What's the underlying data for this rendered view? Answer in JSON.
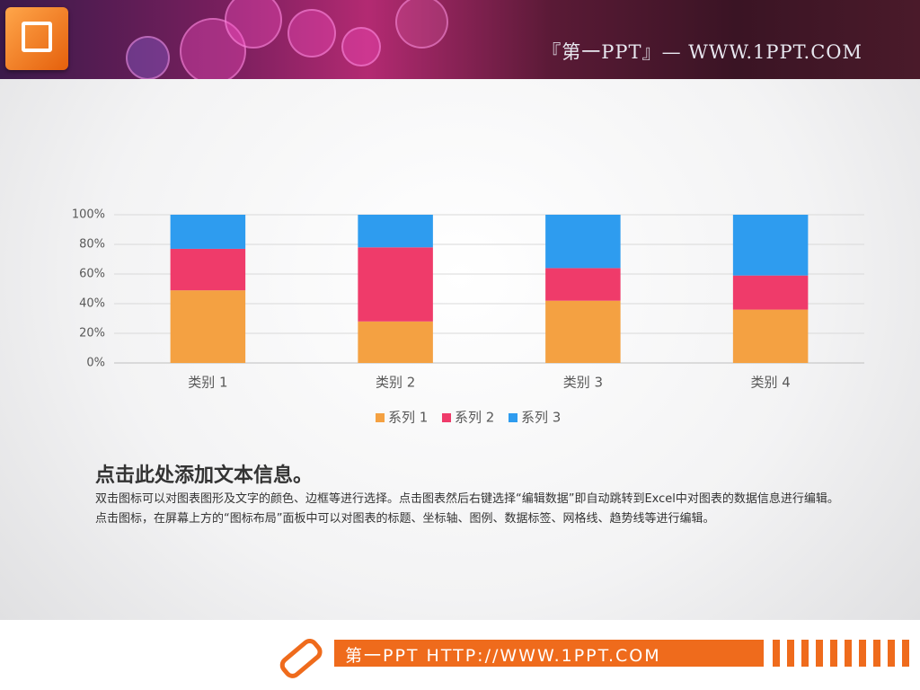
{
  "header": {
    "brand": "『第一PPT』— WWW.1PPT.COM"
  },
  "chart_data": {
    "type": "stacked-bar",
    "categories": [
      "类别 1",
      "类别 2",
      "类别 3",
      "类别 4"
    ],
    "series": [
      {
        "name": "系列 1",
        "color": "#f4a142",
        "values": [
          49,
          28,
          42,
          36
        ]
      },
      {
        "name": "系列 2",
        "color": "#ef3b6a",
        "values": [
          28,
          50,
          22,
          23
        ]
      },
      {
        "name": "系列 3",
        "color": "#2e9cef",
        "values": [
          23,
          22,
          36,
          41
        ]
      }
    ],
    "ylim": [
      0,
      100
    ],
    "yticks": [
      {
        "value": 0,
        "label": "0%"
      },
      {
        "value": 20,
        "label": "20%"
      },
      {
        "value": 40,
        "label": "40%"
      },
      {
        "value": 60,
        "label": "60%"
      },
      {
        "value": 80,
        "label": "80%"
      },
      {
        "value": 100,
        "label": "100%"
      }
    ],
    "grid": true,
    "legend": "bottom"
  },
  "text": {
    "heading": "点击此处添加文本信息。",
    "body": "双击图标可以对图表图形及文字的颜色、边框等进行选择。点击图表然后右键选择“编辑数据”即自动跳转到Excel中对图表的数据信息进行编辑。点击图标，在屏幕上方的“图标布局”面板中可以对图表的标题、坐标轴、图例、数据标签、网格线、趋势线等进行编辑。"
  },
  "footer": {
    "brand": "第一PPT HTTP://WWW.1PPT.COM"
  }
}
